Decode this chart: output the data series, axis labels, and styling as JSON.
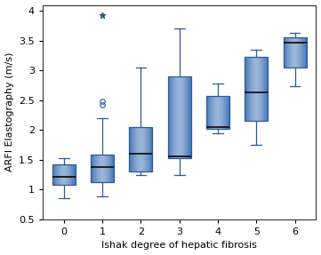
{
  "categories": [
    0,
    1,
    2,
    3,
    4,
    5,
    6
  ],
  "box_stats": [
    {
      "whislo": 0.85,
      "q1": 1.08,
      "med": 1.22,
      "q3": 1.43,
      "whishi": 1.53,
      "fliers": []
    },
    {
      "whislo": 0.88,
      "q1": 1.13,
      "med": 1.38,
      "q3": 1.58,
      "whishi": 2.2,
      "fliers": [
        2.42,
        2.48,
        3.93
      ]
    },
    {
      "whislo": 1.25,
      "q1": 1.3,
      "med": 1.6,
      "q3": 2.05,
      "whishi": 3.05,
      "fliers": []
    },
    {
      "whislo": 1.25,
      "q1": 1.52,
      "med": 1.55,
      "q3": 2.9,
      "whishi": 3.7,
      "fliers": []
    },
    {
      "whislo": 1.95,
      "q1": 2.02,
      "med": 2.05,
      "q3": 2.57,
      "whishi": 2.78,
      "fliers": []
    },
    {
      "whislo": 1.75,
      "q1": 2.15,
      "med": 2.63,
      "q3": 3.23,
      "whishi": 3.35,
      "fliers": []
    },
    {
      "whislo": 2.73,
      "q1": 3.05,
      "med": 3.47,
      "q3": 3.55,
      "whishi": 3.63,
      "fliers": []
    }
  ],
  "box_face_color": "#4878B8",
  "box_edge_color": "#2a5a9a",
  "median_color": "#111111",
  "whisker_color": "#2a5a9a",
  "flier_color": "#2a5a9a",
  "xlabel": "Ishak degree of hepatic fibrosis",
  "ylabel": "ARFI Elastography (m/s)",
  "ylim": [
    0.5,
    4.1
  ],
  "yticks": [
    0.5,
    1.0,
    1.5,
    2.0,
    2.5,
    3.0,
    3.5,
    4.0
  ],
  "background_color": "#ffffff",
  "figsize": [
    3.61,
    2.87
  ],
  "dpi": 100
}
